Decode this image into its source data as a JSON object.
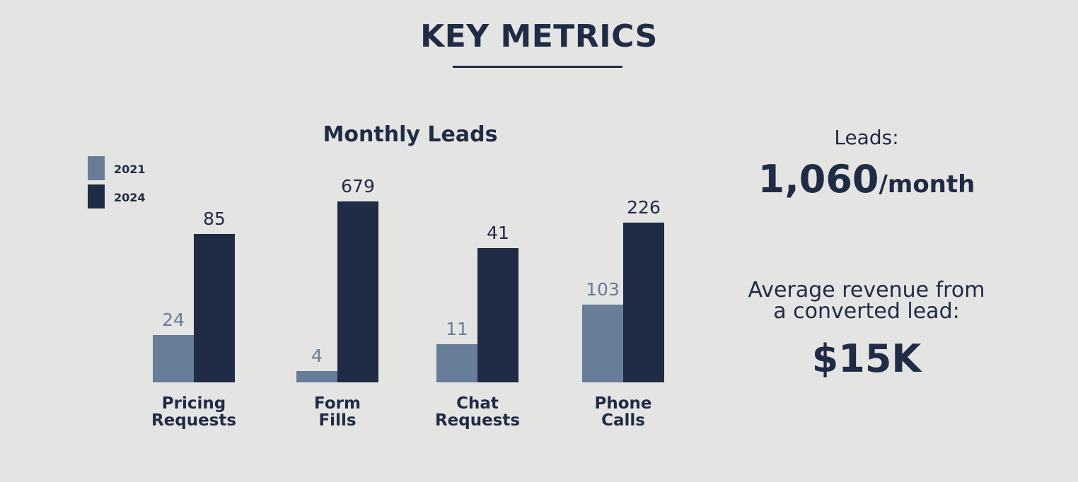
{
  "page": {
    "title": "KEY METRICS"
  },
  "colors": {
    "background": "#e4e4e3",
    "series_2021": "#687d97",
    "series_2024": "#202b46",
    "label_2021": "#687d97",
    "text": "#202b46"
  },
  "chart_data": {
    "type": "bar",
    "title": "Monthly Leads",
    "categories": [
      "Pricing Requests",
      "Form Fills",
      "Chat Requests",
      "Phone Calls"
    ],
    "category_lines": [
      [
        "Pricing",
        "Requests"
      ],
      [
        "Form",
        "Fills"
      ],
      [
        "Chat",
        "Requests"
      ],
      [
        "Phone",
        "Calls"
      ]
    ],
    "series": [
      {
        "name": "2021",
        "values": [
          24,
          4,
          11,
          103
        ],
        "color": "#687d97"
      },
      {
        "name": "2024",
        "values": [
          85,
          679,
          41,
          226
        ],
        "color": "#202b46"
      }
    ],
    "legend_position": "top-left",
    "grid": false,
    "data_labels": true
  },
  "metrics": {
    "leads_label": "Leads:",
    "leads_value": "1,060",
    "leads_unit": "/month",
    "revenue_label_line1": "Average revenue from",
    "revenue_label_line2": "a converted lead:",
    "revenue_value": "$15K"
  }
}
